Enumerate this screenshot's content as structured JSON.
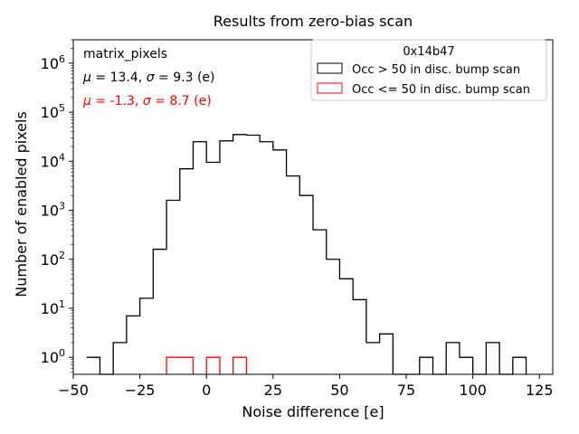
{
  "chart_data": {
    "type": "histogram",
    "title": "Results from zero-bias scan",
    "xlabel": "Noise difference [e]",
    "ylabel": "Number of enabled pixels",
    "xlim": [
      -50,
      130
    ],
    "ylim_log": [
      0.45,
      3000000
    ],
    "yscale": "log",
    "bin_width": 5,
    "xticks": [
      -50,
      -25,
      0,
      25,
      50,
      75,
      100,
      125
    ],
    "xtick_labels": [
      "−50",
      "−25",
      "0",
      "25",
      "50",
      "75",
      "100",
      "125"
    ],
    "yticks": [
      {
        "value": 1,
        "exp": "0"
      },
      {
        "value": 10,
        "exp": "1"
      },
      {
        "value": 100,
        "exp": "2"
      },
      {
        "value": 1000,
        "exp": "3"
      },
      {
        "value": 10000,
        "exp": "4"
      },
      {
        "value": 100000,
        "exp": "5"
      },
      {
        "value": 1000000,
        "exp": "6"
      }
    ],
    "legend": {
      "title": "0x14b47",
      "position": "top-right",
      "entries": [
        {
          "label": "Occ > 50 in disc. bump scan",
          "color": "#000000"
        },
        {
          "label": "Occ <= 50 in disc. bump scan",
          "color": "#ff0000"
        }
      ]
    },
    "annotations": {
      "name": "matrix_pixels",
      "stats1": "μ = 13.4, σ = 9.3 (e)",
      "stats1_color": "#000000",
      "stats2": "μ = -1.3, σ = 8.7 (e)",
      "stats2_color": "#ff0000"
    },
    "series": [
      {
        "name": "Occ > 50 in disc. bump scan",
        "color": "#000000",
        "bin_edges_start": -45,
        "counts": [
          1,
          0,
          2,
          7,
          16,
          160,
          1600,
          7000,
          25000,
          9500,
          26000,
          35000,
          34000,
          25000,
          17000,
          5000,
          2000,
          400,
          100,
          40,
          15,
          2,
          3,
          0,
          0,
          1,
          0,
          2,
          1,
          0,
          2,
          0,
          1
        ]
      },
      {
        "name": "Occ <= 50 in disc. bump scan",
        "color": "#ff0000",
        "bins": [
          {
            "start": -15,
            "end": -5,
            "count": 1
          },
          {
            "start": 0,
            "end": 5,
            "count": 1
          },
          {
            "start": 10,
            "end": 15,
            "count": 1
          }
        ]
      }
    ]
  }
}
